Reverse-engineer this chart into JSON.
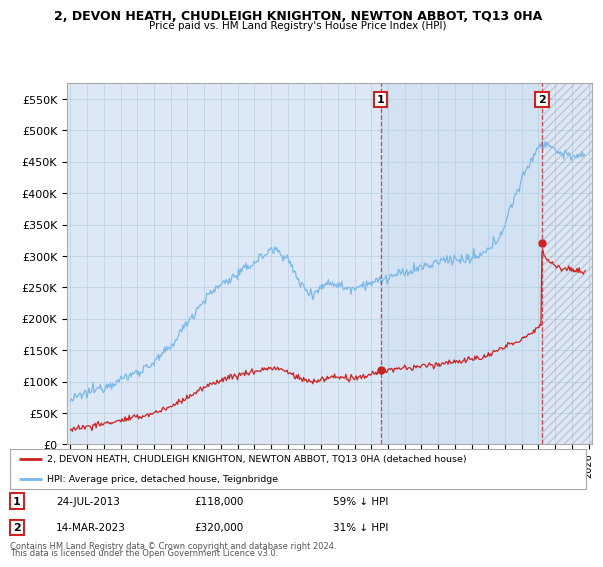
{
  "title": "2, DEVON HEATH, CHUDLEIGH KNIGHTON, NEWTON ABBOT, TQ13 0HA",
  "subtitle": "Price paid vs. HM Land Registry's House Price Index (HPI)",
  "legend_line1": "2, DEVON HEATH, CHUDLEIGH KNIGHTON, NEWTON ABBOT, TQ13 0HA (detached house)",
  "legend_line2": "HPI: Average price, detached house, Teignbridge",
  "annotation1_label": "1",
  "annotation1_date": "24-JUL-2013",
  "annotation1_price": "£118,000",
  "annotation1_hpi": "59% ↓ HPI",
  "annotation2_label": "2",
  "annotation2_date": "14-MAR-2023",
  "annotation2_price": "£320,000",
  "annotation2_hpi": "31% ↓ HPI",
  "footnote1": "Contains HM Land Registry data © Crown copyright and database right 2024.",
  "footnote2": "This data is licensed under the Open Government Licence v3.0.",
  "hpi_color": "#7ab8e8",
  "price_color": "#cc2222",
  "background_color": "#ffffff",
  "plot_bg_color": "#dce8f5",
  "grid_color": "#b8cfe0",
  "ylim": [
    0,
    575000
  ],
  "yticks": [
    0,
    50000,
    100000,
    150000,
    200000,
    250000,
    300000,
    350000,
    400000,
    450000,
    500000,
    550000
  ],
  "xlim_start": 1994.8,
  "xlim_end": 2026.2,
  "sale1_x": 2013.56,
  "sale1_y": 118000,
  "sale2_x": 2023.21,
  "sale2_y": 320000
}
